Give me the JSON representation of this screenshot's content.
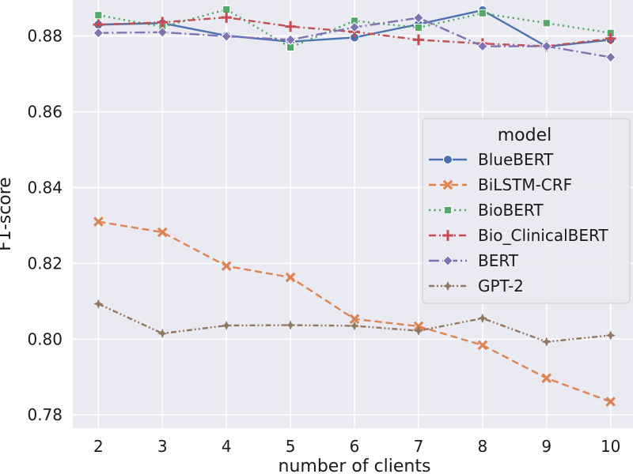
{
  "chart_data": {
    "type": "line",
    "xlabel": "number of clients",
    "ylabel": "F1-score",
    "x": [
      2,
      3,
      4,
      5,
      6,
      7,
      8,
      9,
      10
    ],
    "xlim": [
      1.6,
      10.35
    ],
    "ylim": [
      0.7765,
      0.8895
    ],
    "yticks": [
      "0.78",
      "0.80",
      "0.82",
      "0.84",
      "0.86",
      "0.88"
    ],
    "ytick_values": [
      0.78,
      0.8,
      0.82,
      0.84,
      0.86,
      0.88
    ],
    "xticks": [
      "2",
      "3",
      "4",
      "5",
      "6",
      "7",
      "8",
      "9",
      "10"
    ],
    "grid": true,
    "background": "#eaeaf2",
    "legend": {
      "title": "model",
      "placement": "center-right"
    },
    "series": [
      {
        "name": "BlueBERT",
        "color": "#4c72b0",
        "dash": "solid",
        "marker": "circle",
        "values": [
          0.883,
          0.8834,
          0.8801,
          0.8785,
          0.8796,
          0.8831,
          0.8868,
          0.8772,
          0.879
        ]
      },
      {
        "name": "BiLSTM-CRF",
        "color": "#dd8452",
        "dash": "dashed",
        "marker": "x",
        "values": [
          0.831,
          0.8282,
          0.8193,
          0.8163,
          0.8053,
          0.8034,
          0.7984,
          0.7897,
          0.7835
        ]
      },
      {
        "name": "BioBERT",
        "color": "#55a868",
        "dash": "dotted",
        "marker": "square",
        "values": [
          0.8855,
          0.8824,
          0.887,
          0.877,
          0.884,
          0.8822,
          0.886,
          0.8834,
          0.8808
        ]
      },
      {
        "name": "Bio_ClinicalBERT",
        "color": "#c44e52",
        "dash": "dashdot",
        "marker": "plus",
        "values": [
          0.883,
          0.8836,
          0.8849,
          0.8825,
          0.8811,
          0.879,
          0.878,
          0.8773,
          0.8793
        ]
      },
      {
        "name": "BERT",
        "color": "#8172b3",
        "dash": "dashdotlong",
        "marker": "diamond",
        "values": [
          0.8808,
          0.881,
          0.8799,
          0.879,
          0.8823,
          0.8848,
          0.8773,
          0.8773,
          0.8744
        ]
      },
      {
        "name": "GPT-2",
        "color": "#937860",
        "dash": "dashdotdot",
        "marker": "star",
        "values": [
          0.8093,
          0.8015,
          0.8036,
          0.8037,
          0.8035,
          0.8022,
          0.8055,
          0.7993,
          0.801
        ]
      }
    ]
  }
}
